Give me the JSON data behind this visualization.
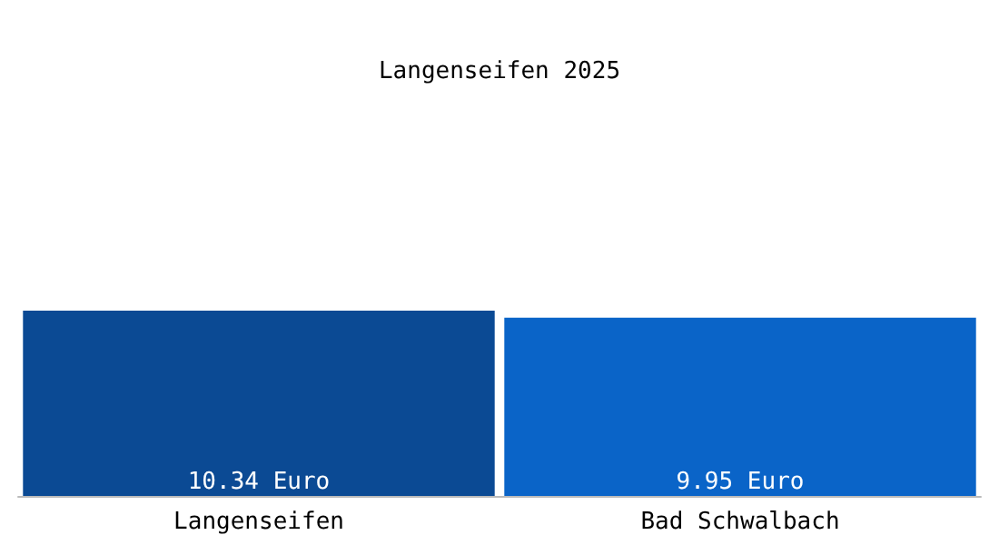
{
  "chart_data": {
    "type": "bar",
    "title": "Langenseifen 2025",
    "categories": [
      "Langenseifen",
      "Bad Schwalbach"
    ],
    "values": [
      10.34,
      9.95
    ],
    "colors": [
      "#0b4a94",
      "#0a64c8"
    ],
    "value_labels": [
      "10.34 Euro",
      "9.95 Euro"
    ]
  }
}
